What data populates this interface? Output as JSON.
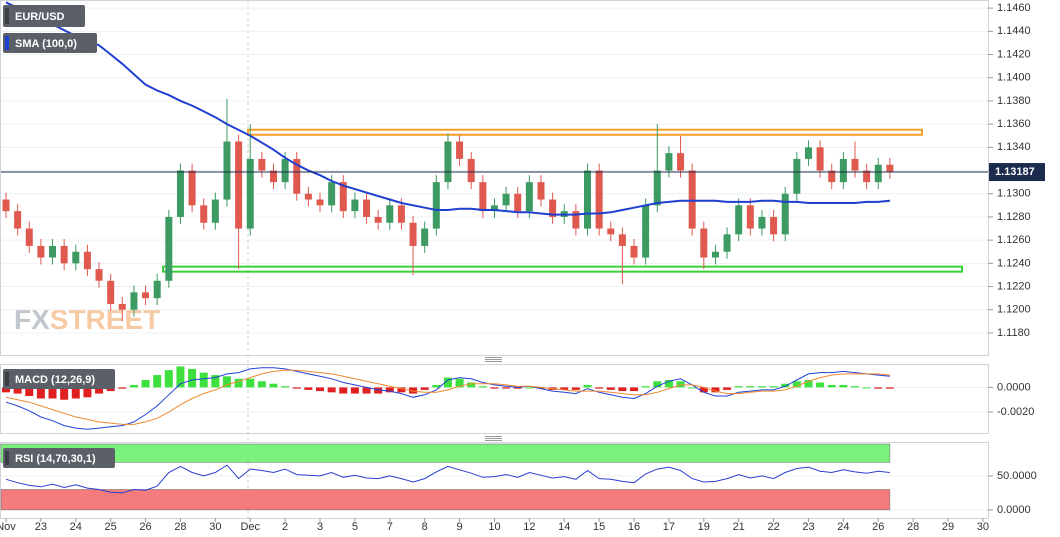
{
  "chart_data": [
    {
      "type": "candlestick",
      "title": "EUR/USD",
      "categories": [
        "Nov",
        null,
        null,
        "23",
        null,
        null,
        "24",
        null,
        null,
        "25",
        null,
        null,
        "26",
        null,
        null,
        "28",
        null,
        null,
        "30",
        null,
        null,
        "Dec",
        null,
        null,
        "2",
        null,
        null,
        "3",
        null,
        null,
        "5",
        null,
        null,
        "7",
        null,
        null,
        "8",
        null,
        null,
        "9",
        null,
        null,
        "10",
        null,
        null,
        "12",
        null,
        null,
        "14",
        null,
        null,
        "15",
        null,
        null,
        "16",
        null,
        null,
        "17",
        null,
        null,
        "19",
        null,
        null,
        "21",
        null,
        null,
        "22",
        null,
        null,
        "23",
        null,
        null,
        "24",
        null,
        null,
        "26",
        null,
        null,
        "28",
        null,
        null,
        "29",
        null,
        null,
        "30",
        null,
        null
      ],
      "open": [
        1.1295,
        1.1285,
        1.127,
        1.1255,
        1.1245,
        1.1255,
        1.124,
        1.125,
        1.1235,
        1.1225,
        1.1205,
        1.12,
        1.1215,
        1.121,
        1.1225,
        1.128,
        1.132,
        1.129,
        1.1275,
        1.1295,
        1.1345,
        1.127,
        1.133,
        1.132,
        1.131,
        1.133,
        1.13,
        1.1295,
        1.129,
        1.131,
        1.1285,
        1.1295,
        1.128,
        1.1275,
        1.129,
        1.1275,
        1.1255,
        1.127,
        1.131,
        1.1345,
        1.133,
        1.131,
        1.1285,
        1.129,
        1.13,
        1.1285,
        1.131,
        1.1295,
        1.128,
        1.1285,
        1.127,
        1.132,
        1.127,
        1.1265,
        1.1255,
        1.1245,
        1.129,
        1.132,
        1.1335,
        1.132,
        1.127,
        1.1245,
        1.125,
        1.1265,
        1.129,
        1.127,
        1.128,
        1.1265,
        1.13,
        1.133,
        1.134,
        1.132,
        1.131,
        1.133,
        1.132,
        1.131,
        1.1325,
        null,
        null,
        null,
        null,
        null,
        null,
        null,
        null,
        null,
        null
      ],
      "high": [
        1.1301,
        1.1291,
        1.1276,
        1.1261,
        1.1261,
        1.1261,
        1.1256,
        1.1256,
        1.1241,
        1.1231,
        1.1211,
        1.1221,
        1.1221,
        1.1231,
        1.1286,
        1.1326,
        1.1326,
        1.1296,
        1.1301,
        1.1382,
        1.1351,
        1.136,
        1.1336,
        1.1326,
        1.1336,
        1.1336,
        1.1306,
        1.1301,
        1.1316,
        1.1316,
        1.1301,
        1.1301,
        1.1286,
        1.1296,
        1.1296,
        1.1281,
        1.1276,
        1.1316,
        1.1352,
        1.1351,
        1.1336,
        1.1316,
        1.1296,
        1.1306,
        1.1306,
        1.1316,
        1.1316,
        1.1301,
        1.1291,
        1.1291,
        1.1326,
        1.1326,
        1.1276,
        1.1271,
        1.1261,
        1.1296,
        1.136,
        1.1341,
        1.135,
        1.1326,
        1.1276,
        1.1256,
        1.1271,
        1.1296,
        1.1296,
        1.1286,
        1.1286,
        1.1306,
        1.1336,
        1.1346,
        1.1346,
        1.1326,
        1.1336,
        1.1345,
        1.1326,
        1.1331,
        1.1331,
        null,
        null,
        null,
        null,
        null,
        null,
        null,
        null,
        null,
        null
      ],
      "low": [
        1.1279,
        1.1264,
        1.1249,
        1.1239,
        1.1239,
        1.1234,
        1.1234,
        1.1229,
        1.1219,
        1.1199,
        1.119,
        1.1194,
        1.1204,
        1.1204,
        1.1219,
        1.1274,
        1.1284,
        1.1269,
        1.1269,
        1.1289,
        1.1235,
        1.1264,
        1.1314,
        1.1304,
        1.1304,
        1.1294,
        1.1289,
        1.1284,
        1.1284,
        1.1279,
        1.1279,
        1.1274,
        1.1269,
        1.1269,
        1.1269,
        1.123,
        1.1249,
        1.1264,
        1.1304,
        1.1324,
        1.1304,
        1.1279,
        1.1279,
        1.1284,
        1.1279,
        1.1279,
        1.1289,
        1.1274,
        1.1274,
        1.1264,
        1.1264,
        1.1264,
        1.1259,
        1.1222,
        1.1239,
        1.1239,
        1.1284,
        1.1314,
        1.1314,
        1.1264,
        1.1235,
        1.1239,
        1.1244,
        1.1259,
        1.1264,
        1.1264,
        1.1259,
        1.1259,
        1.1294,
        1.1324,
        1.1314,
        1.1304,
        1.1304,
        1.1314,
        1.1304,
        1.1304,
        1.1313,
        null,
        null,
        null,
        null,
        null,
        null,
        null,
        null,
        null,
        null
      ],
      "close": [
        1.1285,
        1.127,
        1.1255,
        1.1245,
        1.1255,
        1.124,
        1.125,
        1.1235,
        1.1225,
        1.1205,
        1.12,
        1.1215,
        1.121,
        1.1225,
        1.128,
        1.132,
        1.129,
        1.1275,
        1.1295,
        1.1345,
        1.127,
        1.133,
        1.132,
        1.131,
        1.133,
        1.13,
        1.1295,
        1.129,
        1.131,
        1.1285,
        1.1295,
        1.128,
        1.1275,
        1.129,
        1.1275,
        1.1255,
        1.127,
        1.131,
        1.1345,
        1.133,
        1.131,
        1.1285,
        1.129,
        1.13,
        1.1285,
        1.131,
        1.1295,
        1.128,
        1.1285,
        1.127,
        1.132,
        1.127,
        1.1265,
        1.1255,
        1.1245,
        1.129,
        1.132,
        1.1335,
        1.132,
        1.127,
        1.1245,
        1.125,
        1.1265,
        1.129,
        1.127,
        1.128,
        1.1265,
        1.13,
        1.133,
        1.134,
        1.132,
        1.131,
        1.133,
        1.132,
        1.131,
        1.1325,
        1.13187,
        null,
        null,
        null,
        null,
        null,
        null,
        null,
        null,
        null,
        null
      ],
      "up_color": "#3d9a62",
      "down_color": "#e0594f",
      "last_price_label": "1.13187",
      "last_price_color": "#1d2b4f",
      "overlays": [
        {
          "name": "SMA (100,0)",
          "color": "#1f3fd1",
          "values": [
            1.1465,
            1.146,
            1.1455,
            1.145,
            1.1446,
            1.1441,
            1.1436,
            1.1432,
            1.1428,
            1.142,
            1.1412,
            1.1403,
            1.1394,
            1.1389,
            1.1385,
            1.138,
            1.1376,
            1.1371,
            1.1366,
            1.136,
            1.1355,
            1.135,
            1.1344,
            1.1338,
            1.1331,
            1.1325,
            1.132,
            1.1316,
            1.1311,
            1.1307,
            1.1304,
            1.1301,
            1.1298,
            1.1295,
            1.1292,
            1.129,
            1.1288,
            1.1286,
            1.1286,
            1.1287,
            1.1287,
            1.1286,
            1.1286,
            1.1285,
            1.1284,
            1.1284,
            1.1283,
            1.1282,
            1.1282,
            1.1282,
            1.1283,
            1.1283,
            1.1284,
            1.1286,
            1.1288,
            1.129,
            1.1292,
            1.1293,
            1.1294,
            1.1294,
            1.1294,
            1.1294,
            1.1293,
            1.1293,
            1.1293,
            1.1294,
            1.1294,
            1.1293,
            1.1293,
            1.1292,
            1.1292,
            1.1292,
            1.1292,
            1.1292,
            1.1293,
            1.1293,
            1.1294,
            null,
            null,
            null,
            null,
            null,
            null,
            null,
            null,
            null,
            null
          ]
        }
      ],
      "levels": [
        {
          "value": 1.1353,
          "color": "#f5a020"
        },
        {
          "value": 1.1235,
          "color": "#3ccf3c"
        }
      ],
      "watermark": [
        "FX",
        "STREET"
      ],
      "ylim": [
        1.1161,
        1.1467
      ],
      "yticks": [
        {
          "value": 1.118,
          "label": "1.1180"
        },
        {
          "value": 1.12,
          "label": "1.1200"
        },
        {
          "value": 1.122,
          "label": "1.1220"
        },
        {
          "value": 1.124,
          "label": "1.1240"
        },
        {
          "value": 1.126,
          "label": "1.1260"
        },
        {
          "value": 1.128,
          "label": "1.1280"
        },
        {
          "value": 1.13,
          "label": "1.1300"
        },
        {
          "value": 1.132,
          "label": "1.1320"
        },
        {
          "value": 1.134,
          "label": "1.1340"
        },
        {
          "value": 1.136,
          "label": "1.1360"
        },
        {
          "value": 1.138,
          "label": "1.1380"
        },
        {
          "value": 1.14,
          "label": "1.1400"
        },
        {
          "value": 1.142,
          "label": "1.1420"
        },
        {
          "value": 1.144,
          "label": "1.1440"
        },
        {
          "value": 1.146,
          "label": "1.1460"
        }
      ]
    },
    {
      "type": "macd",
      "title": "MACD (12,26,9)",
      "histogram": {
        "positive_color": "#3ee03e",
        "negative_color": "#e02020",
        "values": [
          -0.0004,
          -0.0005,
          -0.0007,
          -0.0009,
          -0.0009,
          -0.001,
          -0.0009,
          -0.0008,
          -0.0005,
          -0.0003,
          -0.0001,
          0.0002,
          0.0006,
          0.001,
          0.0014,
          0.0017,
          0.0015,
          0.0012,
          0.001,
          0.0009,
          0.0007,
          0.0007,
          0.0005,
          0.0003,
          0.0001,
          -0.0001,
          -0.0002,
          -0.0003,
          -0.0004,
          -0.0005,
          -0.0005,
          -0.0005,
          -0.0005,
          -0.0004,
          -0.0004,
          -0.0005,
          -0.0002,
          0.0002,
          0.0008,
          0.0007,
          0.0004,
          0.0001,
          -0.0001,
          -0.0001,
          -0.0001,
          0.0,
          -0.0001,
          -0.0002,
          -0.0002,
          -0.0002,
          0.0002,
          -0.0001,
          -0.0002,
          -0.0003,
          -0.0003,
          0.0001,
          0.0005,
          0.0006,
          0.0005,
          0.0,
          -0.0004,
          -0.0004,
          -0.0002,
          0.0001,
          0.0001,
          0.0001,
          0.0001,
          0.0003,
          0.0005,
          0.0006,
          0.0004,
          0.0002,
          0.0002,
          0.0001,
          0.0,
          -0.0001,
          -0.0001,
          null,
          null,
          null,
          null,
          null,
          null,
          null,
          null,
          null,
          null
        ]
      },
      "lines": [
        {
          "color": "#2242d8",
          "values": [
            -0.0012,
            -0.0015,
            -0.0019,
            -0.0024,
            -0.0027,
            -0.0031,
            -0.0033,
            -0.0034,
            -0.0033,
            -0.0032,
            -0.0031,
            -0.0028,
            -0.0022,
            -0.0015,
            -0.0006,
            0.0003,
            0.0006,
            0.0007,
            0.0008,
            0.0011,
            0.0012,
            0.0015,
            0.0016,
            0.0016,
            0.0015,
            0.0013,
            0.0011,
            0.0009,
            0.0007,
            0.0004,
            0.0002,
            0.0,
            -0.0002,
            -0.0003,
            -0.0005,
            -0.0008,
            -0.0006,
            -0.0002,
            0.0006,
            0.0008,
            0.0007,
            0.0004,
            0.0002,
            0.0001,
            0.0,
            0.0001,
            -0.0001,
            -0.0003,
            -0.0004,
            -0.0005,
            -0.0001,
            -0.0004,
            -0.0006,
            -0.0008,
            -0.0009,
            -0.0005,
            0.0001,
            0.0005,
            0.0007,
            0.0002,
            -0.0004,
            -0.0007,
            -0.0007,
            -0.0004,
            -0.0003,
            -0.0002,
            -0.0002,
            0.0001,
            0.0006,
            0.0011,
            0.0012,
            0.0012,
            0.0013,
            0.0012,
            0.0011,
            0.001,
            0.0009,
            null,
            null,
            null,
            null,
            null,
            null,
            null,
            null,
            null,
            null
          ]
        },
        {
          "color": "#f08a30",
          "values": [
            -0.0008,
            -0.001,
            -0.0012,
            -0.0015,
            -0.0018,
            -0.0021,
            -0.0024,
            -0.0026,
            -0.0028,
            -0.0029,
            -0.003,
            -0.003,
            -0.0028,
            -0.0025,
            -0.002,
            -0.0014,
            -0.0009,
            -0.0005,
            -0.0002,
            0.0002,
            0.0005,
            0.0008,
            0.0011,
            0.0013,
            0.0014,
            0.0014,
            0.0013,
            0.0012,
            0.0011,
            0.0009,
            0.0007,
            0.0005,
            0.0003,
            0.0001,
            -0.0001,
            -0.0003,
            -0.0004,
            -0.0004,
            -0.0002,
            0.0001,
            0.0003,
            0.0003,
            0.0003,
            0.0002,
            0.0001,
            0.0001,
            0.0,
            -0.0001,
            -0.0002,
            -0.0003,
            -0.0003,
            -0.0003,
            -0.0004,
            -0.0005,
            -0.0006,
            -0.0006,
            -0.0004,
            -0.0001,
            0.0002,
            0.0002,
            0.0,
            -0.0003,
            -0.0005,
            -0.0005,
            -0.0004,
            -0.0003,
            -0.0003,
            -0.0002,
            0.0001,
            0.0005,
            0.0008,
            0.001,
            0.0011,
            0.0011,
            0.0011,
            0.0011,
            0.001,
            null,
            null,
            null,
            null,
            null,
            null,
            null,
            null,
            null,
            null
          ]
        }
      ],
      "ylim": [
        -0.0037,
        0.0019
      ],
      "yticks": [
        {
          "value": 0,
          "label": "0.0000"
        },
        {
          "value": -0.002,
          "label": "-0.0020"
        }
      ]
    },
    {
      "type": "rsi",
      "title": "RSI (14,70,30,1)",
      "color": "#2a3fd0",
      "values": [
        45,
        40,
        36,
        34,
        38,
        33,
        37,
        32,
        30,
        26,
        25,
        30,
        29,
        35,
        55,
        64,
        55,
        50,
        55,
        66,
        46,
        60,
        58,
        55,
        60,
        52,
        51,
        50,
        55,
        48,
        51,
        47,
        46,
        50,
        46,
        41,
        46,
        56,
        64,
        59,
        54,
        48,
        49,
        52,
        48,
        55,
        51,
        47,
        49,
        45,
        58,
        46,
        45,
        42,
        40,
        53,
        60,
        63,
        58,
        46,
        41,
        42,
        46,
        52,
        47,
        50,
        46,
        55,
        61,
        63,
        57,
        55,
        59,
        56,
        54,
        57,
        55,
        null,
        null,
        null,
        null,
        null,
        null,
        null,
        null,
        null,
        null
      ],
      "bands": [
        {
          "from": 70,
          "to": 97,
          "color": "#7cf07c"
        },
        {
          "from": 0,
          "to": 30,
          "color": "#f47c7c"
        }
      ],
      "ylim": [
        -12,
        100
      ],
      "yticks": [
        {
          "value": 50,
          "label": "50.0000"
        },
        {
          "value": 0,
          "label": "0.0000"
        }
      ]
    }
  ]
}
